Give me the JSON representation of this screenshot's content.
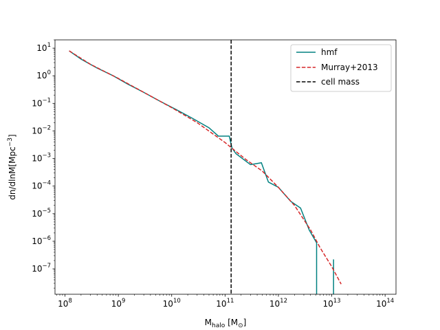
{
  "chart_data": {
    "type": "line",
    "xscale": "log",
    "yscale": "log",
    "xlim": [
      65000000.0,
      160000000000000.0
    ],
    "ylim": [
      1.2e-08,
      20
    ],
    "xticks": [
      {
        "value": 100000000.0,
        "base": "10",
        "exp": "8"
      },
      {
        "value": 1000000000.0,
        "base": "10",
        "exp": "9"
      },
      {
        "value": 10000000000.0,
        "base": "10",
        "exp": "10"
      },
      {
        "value": 100000000000.0,
        "base": "10",
        "exp": "11"
      },
      {
        "value": 1000000000000.0,
        "base": "10",
        "exp": "12"
      },
      {
        "value": 10000000000000.0,
        "base": "10",
        "exp": "13"
      },
      {
        "value": 100000000000000.0,
        "base": "10",
        "exp": "14"
      }
    ],
    "yticks": [
      {
        "value": 10.0,
        "base": "10",
        "exp": "1"
      },
      {
        "value": 1.0,
        "base": "10",
        "exp": "0"
      },
      {
        "value": 0.1,
        "base": "10",
        "exp": "−1"
      },
      {
        "value": 0.01,
        "base": "10",
        "exp": "−2"
      },
      {
        "value": 0.001,
        "base": "10",
        "exp": "−3"
      },
      {
        "value": 0.0001,
        "base": "10",
        "exp": "−4"
      },
      {
        "value": 1e-05,
        "base": "10",
        "exp": "−5"
      },
      {
        "value": 1e-06,
        "base": "10",
        "exp": "−6"
      },
      {
        "value": 1e-07,
        "base": "10",
        "exp": "−7"
      }
    ],
    "xlabel": {
      "main": "M",
      "sub": "halo",
      "unit_open": " [M",
      "unit_sub": "⊙",
      "unit_close": "]"
    },
    "ylabel": {
      "main": "dn/dlnM[Mpc",
      "sup": "−3",
      "close": "]"
    },
    "legend_position": "upper-right",
    "series": [
      {
        "name": "hmf",
        "color": "#008080",
        "style": "solid",
        "points": [
          [
            120000000.0,
            8.0
          ],
          [
            200000000.0,
            4.0
          ],
          [
            400000000.0,
            1.9
          ],
          [
            800000000.0,
            1.0
          ],
          [
            1500000000.0,
            0.5
          ],
          [
            3000000000.0,
            0.25
          ],
          [
            6000000000.0,
            0.12
          ],
          [
            12000000000.0,
            0.06
          ],
          [
            25000000000.0,
            0.028
          ],
          [
            50000000000.0,
            0.013
          ],
          [
            75000000000.0,
            0.0065
          ],
          [
            120000000000.0,
            0.0065
          ],
          [
            135000000000.0,
            0.0024
          ],
          [
            160000000000.0,
            0.0015
          ],
          [
            300000000000.0,
            0.0006
          ],
          [
            480000000000.0,
            0.0007
          ],
          [
            650000000000.0,
            0.00014
          ],
          [
            1000000000000.0,
            9e-05
          ],
          [
            1700000000000.0,
            2.8e-05
          ],
          [
            2600000000000.0,
            1.6e-05
          ],
          [
            3800000000000.0,
            2.5e-06
          ],
          [
            5200000000000.0,
            8.8e-07
          ],
          [
            5200000000000.0,
            1.2e-08
          ]
        ],
        "points2": [
          [
            10800000000000.0,
            1.2e-08
          ],
          [
            10800000000000.0,
            2.2e-07
          ]
        ]
      },
      {
        "name": "Murray+2013",
        "color": "#d62728",
        "style": "dashed",
        "points": [
          [
            120000000.0,
            8.0
          ],
          [
            300000000.0,
            2.6
          ],
          [
            1000000000.0,
            0.8
          ],
          [
            3000000000.0,
            0.25
          ],
          [
            10000000000.0,
            0.07
          ],
          [
            30000000000.0,
            0.02
          ],
          [
            100000000000.0,
            0.0038
          ],
          [
            160000000000.0,
            0.0018
          ],
          [
            250000000000.0,
            0.0009
          ],
          [
            500000000000.0,
            0.00035
          ],
          [
            1000000000000.0,
            9e-05
          ],
          [
            2000000000000.0,
            2e-05
          ],
          [
            4000000000000.0,
            2.6e-06
          ],
          [
            6000000000000.0,
            6e-07
          ],
          [
            10000000000000.0,
            1.2e-07
          ],
          [
            15000000000000.0,
            2.8e-08
          ]
        ]
      },
      {
        "name": "cell mass",
        "color": "#000000",
        "style": "dashed",
        "vline_x": 130000000000.0
      }
    ]
  }
}
